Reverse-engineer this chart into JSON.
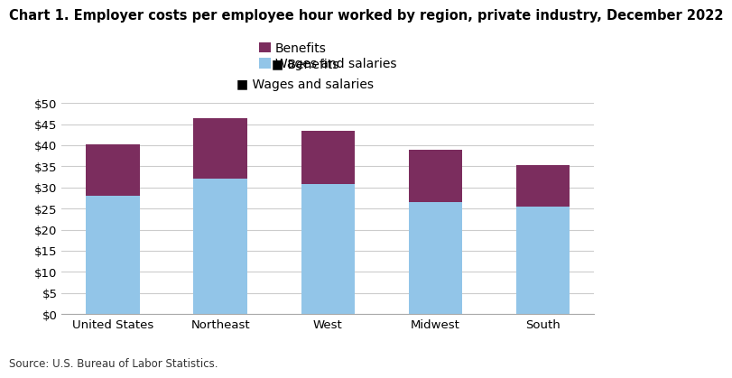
{
  "title": "Chart 1. Employer costs per employee hour worked by region, private industry, December 2022",
  "categories": [
    "United States",
    "Northeast",
    "West",
    "Midwest",
    "South"
  ],
  "wages": [
    28.01,
    32.12,
    30.73,
    26.52,
    25.54
  ],
  "benefits": [
    12.09,
    14.28,
    12.77,
    12.38,
    9.76
  ],
  "wages_color": "#92C5E8",
  "benefits_color": "#7B2D5E",
  "ylim": [
    0,
    50
  ],
  "yticks": [
    0,
    5,
    10,
    15,
    20,
    25,
    30,
    35,
    40,
    45,
    50
  ],
  "legend_labels": [
    "Benefits",
    "Wages and salaries"
  ],
  "source": "Source: U.S. Bureau of Labor Statistics.",
  "bar_width": 0.5,
  "background_color": "#ffffff",
  "grid_color": "#cccccc",
  "title_fontsize": 10.5,
  "tick_fontsize": 9.5,
  "legend_fontsize": 10,
  "source_fontsize": 8.5
}
